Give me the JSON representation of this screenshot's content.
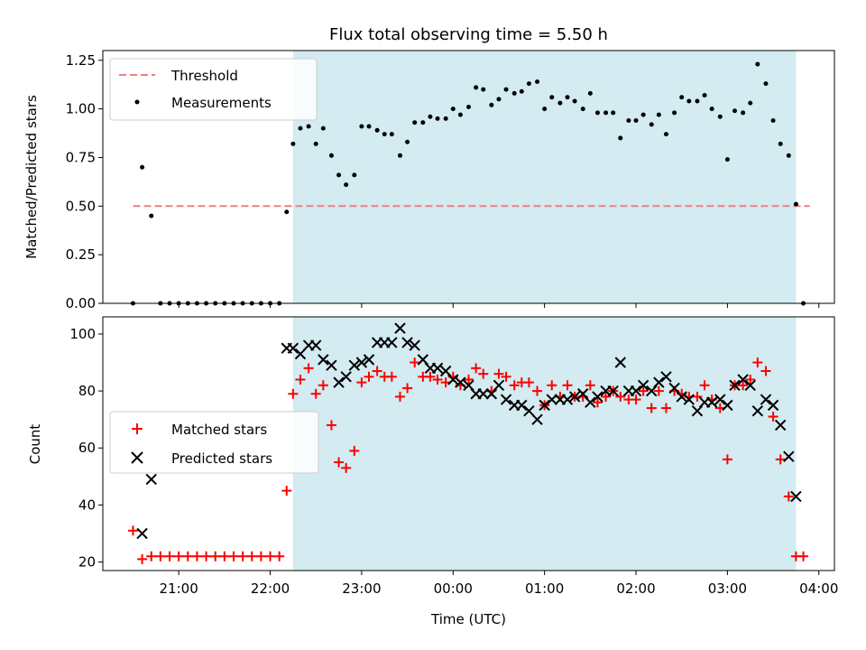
{
  "chart_data": [
    {
      "type": "scatter",
      "title": "Flux total observing time = 5.50 h",
      "xlabel": "",
      "ylabel": "Matched/Predicted stars",
      "ylim": [
        0,
        1.3
      ],
      "yticks": [
        0,
        0.25,
        0.5,
        0.75,
        1.0,
        1.25
      ],
      "ytick_labels": [
        "0.00",
        "0.25",
        "0.50",
        "0.75",
        "1.00",
        "1.25"
      ],
      "x_unit": "hours since 20:00 UTC",
      "xlim": [
        0.17,
        8.17
      ],
      "xticks": [
        1,
        2,
        3,
        4,
        5,
        6,
        7,
        8
      ],
      "xtick_labels": [
        "21:00",
        "22:00",
        "23:00",
        "00:00",
        "01:00",
        "02:00",
        "03:00",
        "04:00"
      ],
      "shaded_span": [
        2.25,
        7.75
      ],
      "shade_color": "#d3ebf1",
      "legend": {
        "position": "upper-left",
        "entries": [
          "Threshold",
          "Measurements"
        ]
      },
      "threshold": {
        "name": "Threshold",
        "y": 0.5,
        "x_range": [
          0.5,
          7.9
        ],
        "color": "#f08080"
      },
      "series": [
        {
          "name": "Measurements",
          "color": "#000000",
          "x": [
            0.5,
            0.6,
            0.7,
            0.8,
            0.9,
            1.0,
            1.1,
            1.2,
            1.3,
            1.4,
            1.5,
            1.6,
            1.7,
            1.8,
            1.9,
            2.0,
            2.1,
            2.18,
            2.25,
            2.33,
            2.42,
            2.5,
            2.58,
            2.67,
            2.75,
            2.83,
            2.92,
            3.0,
            3.08,
            3.17,
            3.25,
            3.33,
            3.42,
            3.5,
            3.58,
            3.67,
            3.75,
            3.83,
            3.92,
            4.0,
            4.08,
            4.17,
            4.25,
            4.33,
            4.42,
            4.5,
            4.58,
            4.67,
            4.75,
            4.83,
            4.92,
            5.0,
            5.08,
            5.17,
            5.25,
            5.33,
            5.42,
            5.5,
            5.58,
            5.67,
            5.75,
            5.83,
            5.92,
            6.0,
            6.08,
            6.17,
            6.25,
            6.33,
            6.42,
            6.5,
            6.58,
            6.67,
            6.75,
            6.83,
            6.92,
            7.0,
            7.08,
            7.17,
            7.25,
            7.33,
            7.42,
            7.5,
            7.58,
            7.67,
            7.75,
            7.83
          ],
          "y": [
            0.0,
            0.7,
            0.45,
            0.0,
            0.0,
            0.0,
            0.0,
            0.0,
            0.0,
            0.0,
            0.0,
            0.0,
            0.0,
            0.0,
            0.0,
            0.0,
            0.0,
            0.47,
            0.82,
            0.9,
            0.91,
            0.82,
            0.9,
            0.76,
            0.66,
            0.61,
            0.66,
            0.91,
            0.91,
            0.89,
            0.87,
            0.87,
            0.76,
            0.83,
            0.93,
            0.93,
            0.96,
            0.95,
            0.95,
            1.0,
            0.97,
            1.01,
            1.11,
            1.1,
            1.02,
            1.05,
            1.1,
            1.08,
            1.09,
            1.13,
            1.14,
            1.0,
            1.06,
            1.03,
            1.06,
            1.04,
            1.0,
            1.08,
            0.98,
            0.98,
            0.98,
            0.85,
            0.94,
            0.94,
            0.97,
            0.92,
            0.97,
            0.87,
            0.98,
            1.06,
            1.04,
            1.04,
            1.07,
            1.0,
            0.96,
            0.74,
            0.99,
            0.98,
            1.03,
            1.23,
            1.13,
            0.94,
            0.82,
            0.76,
            0.51,
            0.0
          ]
        }
      ]
    },
    {
      "type": "scatter",
      "title": "",
      "xlabel": "Time (UTC)",
      "ylabel": "Count",
      "ylim": [
        17,
        106
      ],
      "yticks": [
        20,
        40,
        60,
        80,
        100
      ],
      "ytick_labels": [
        "20",
        "40",
        "60",
        "80",
        "100"
      ],
      "x_unit": "hours since 20:00 UTC",
      "xlim": [
        0.17,
        8.17
      ],
      "xticks": [
        1,
        2,
        3,
        4,
        5,
        6,
        7,
        8
      ],
      "xtick_labels": [
        "21:00",
        "22:00",
        "23:00",
        "00:00",
        "01:00",
        "02:00",
        "03:00",
        "04:00"
      ],
      "shaded_span": [
        2.25,
        7.75
      ],
      "shade_color": "#d3ebf1",
      "legend": {
        "position": "center-left",
        "entries": [
          "Matched stars",
          "Predicted stars"
        ]
      },
      "series": [
        {
          "name": "Matched stars",
          "marker": "plus",
          "color": "#ff0000",
          "x": [
            0.5,
            0.6,
            0.7,
            0.8,
            0.9,
            1.0,
            1.1,
            1.2,
            1.3,
            1.4,
            1.5,
            1.6,
            1.7,
            1.8,
            1.9,
            2.0,
            2.1,
            2.18,
            2.25,
            2.33,
            2.42,
            2.5,
            2.58,
            2.67,
            2.75,
            2.83,
            2.92,
            3.0,
            3.08,
            3.17,
            3.25,
            3.33,
            3.42,
            3.5,
            3.58,
            3.67,
            3.75,
            3.83,
            3.92,
            4.0,
            4.08,
            4.17,
            4.25,
            4.33,
            4.42,
            4.5,
            4.58,
            4.67,
            4.75,
            4.83,
            4.92,
            5.0,
            5.08,
            5.17,
            5.25,
            5.33,
            5.42,
            5.5,
            5.58,
            5.67,
            5.75,
            5.83,
            5.92,
            6.0,
            6.08,
            6.17,
            6.25,
            6.33,
            6.42,
            6.5,
            6.58,
            6.67,
            6.75,
            6.83,
            6.92,
            7.0,
            7.08,
            7.17,
            7.25,
            7.33,
            7.42,
            7.5,
            7.58,
            7.67,
            7.75,
            7.83
          ],
          "y": [
            31,
            21,
            22,
            22,
            22,
            22,
            22,
            22,
            22,
            22,
            22,
            22,
            22,
            22,
            22,
            22,
            22,
            45,
            79,
            84,
            88,
            79,
            82,
            68,
            55,
            53,
            59,
            83,
            85,
            87,
            85,
            85,
            78,
            81,
            90,
            85,
            85,
            84,
            83,
            85,
            82,
            84,
            88,
            86,
            80,
            86,
            85,
            82,
            83,
            83,
            80,
            75,
            82,
            78,
            82,
            78,
            78,
            82,
            76,
            78,
            80,
            78,
            77,
            77,
            80,
            74,
            80,
            74,
            80,
            79,
            78,
            78,
            82,
            77,
            74,
            56,
            82,
            82,
            84,
            90,
            87,
            71,
            56,
            43,
            22,
            22
          ]
        },
        {
          "name": "Predicted stars",
          "marker": "x",
          "color": "#000000",
          "x": [
            0.6,
            0.7,
            2.18,
            2.25,
            2.33,
            2.42,
            2.5,
            2.58,
            2.67,
            2.75,
            2.83,
            2.92,
            3.0,
            3.08,
            3.17,
            3.25,
            3.33,
            3.42,
            3.5,
            3.58,
            3.67,
            3.75,
            3.83,
            3.92,
            4.0,
            4.08,
            4.17,
            4.25,
            4.33,
            4.42,
            4.5,
            4.58,
            4.67,
            4.75,
            4.83,
            4.92,
            5.0,
            5.08,
            5.17,
            5.25,
            5.33,
            5.42,
            5.5,
            5.58,
            5.67,
            5.75,
            5.83,
            5.92,
            6.0,
            6.08,
            6.17,
            6.25,
            6.33,
            6.42,
            6.5,
            6.58,
            6.67,
            6.75,
            6.83,
            6.92,
            7.0,
            7.08,
            7.17,
            7.25,
            7.33,
            7.42,
            7.5,
            7.58,
            7.67,
            7.75
          ],
          "y": [
            30,
            49,
            95,
            95,
            93,
            96,
            96,
            91,
            89,
            83,
            85,
            89,
            90,
            91,
            97,
            97,
            97,
            102,
            97,
            96,
            91,
            88,
            88,
            87,
            84,
            83,
            82,
            79,
            79,
            79,
            82,
            77,
            75,
            75,
            73,
            70,
            75,
            77,
            77,
            77,
            78,
            79,
            76,
            78,
            80,
            80,
            90,
            80,
            80,
            82,
            80,
            83,
            85,
            81,
            78,
            77,
            73,
            76,
            76,
            77,
            75,
            82,
            84,
            82,
            73,
            77,
            75,
            68,
            57,
            43
          ]
        }
      ]
    }
  ]
}
